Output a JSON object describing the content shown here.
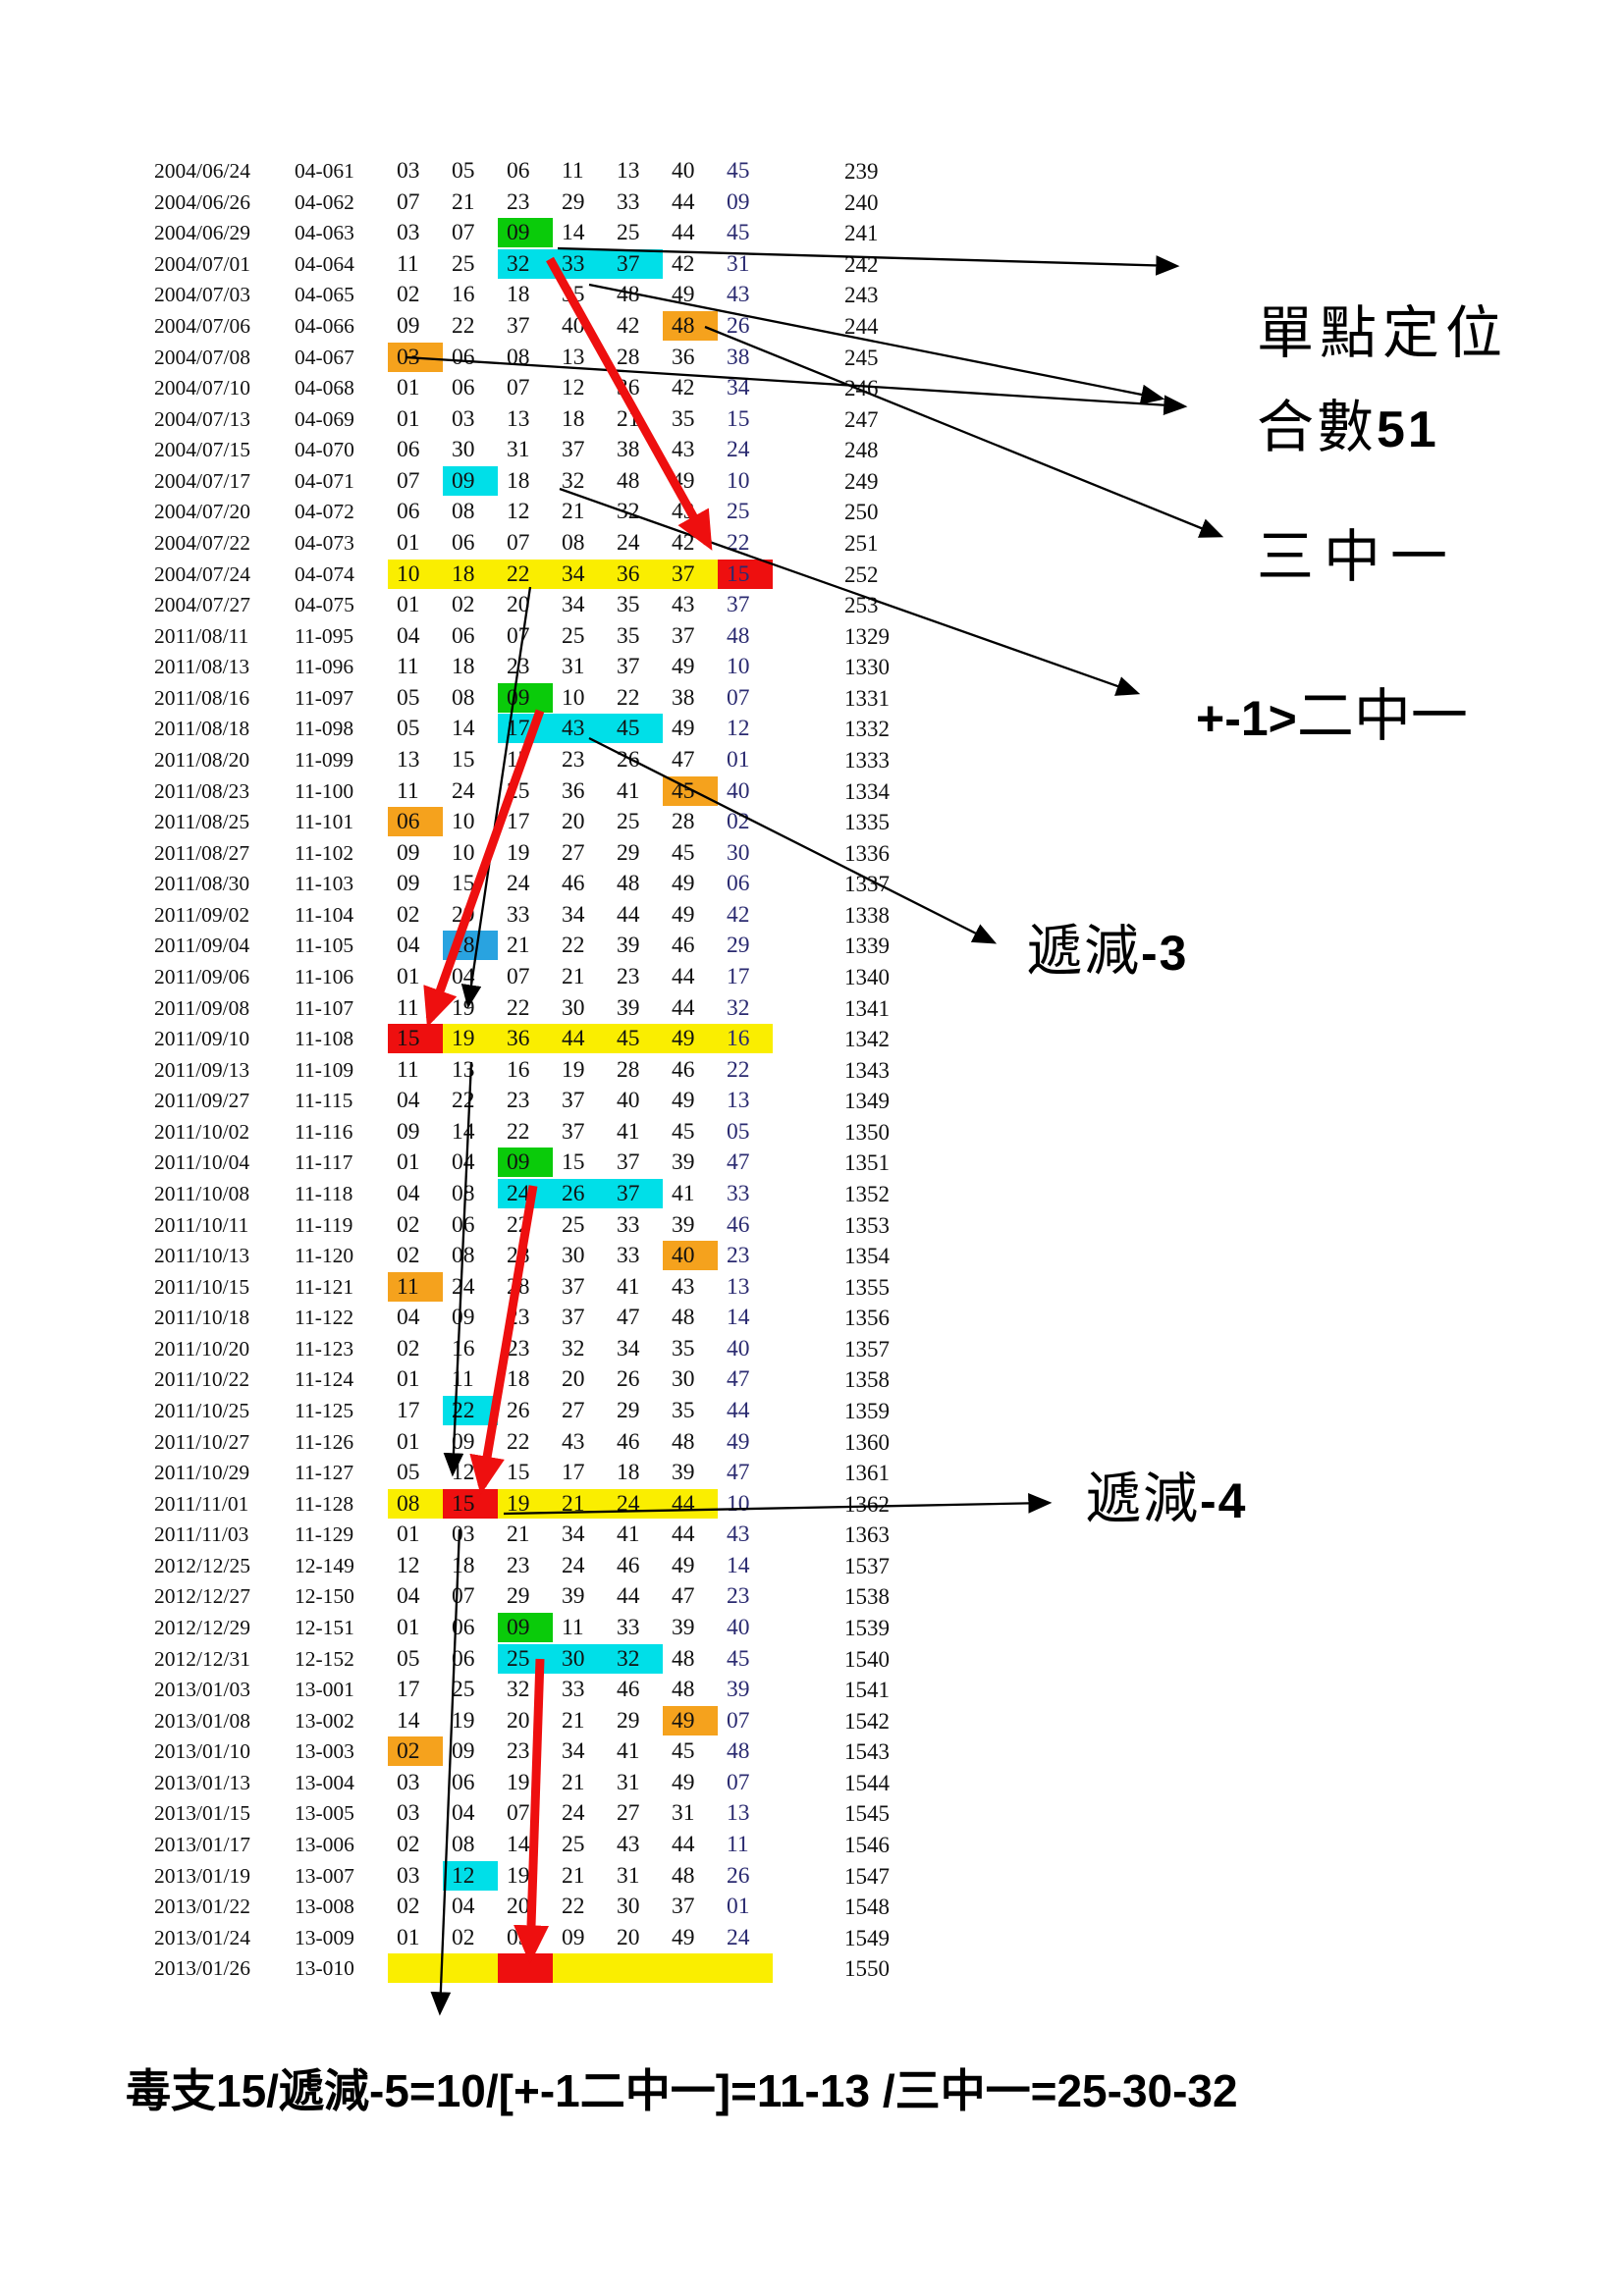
{
  "palette": {
    "green": "#0acb0a",
    "cyan": "#00dfe8",
    "blue": "#29a3e0",
    "orange": "#f5a21d",
    "red": "#ee0f0f",
    "yellow": "#faee00",
    "navy": "#2a2a70"
  },
  "annotations": {
    "single_point": {
      "text": "單點定位"
    },
    "sum51": {
      "cjk": "合數",
      "num": "51"
    },
    "three_hit_one": {
      "text": "三中一"
    },
    "plus_minus": {
      "latin": "+-1>",
      "cjk": "二中一"
    },
    "decrease3": {
      "cjk": "遞減",
      "num": "-3"
    },
    "decrease4": {
      "cjk": "遞減",
      "num": "-4"
    }
  },
  "footer": {
    "text": "毒支15/遞減-5=10/[+-1二中一]=11-13 /三中一=25-30-32"
  },
  "table": {
    "rows": [
      {
        "d": "2004/06/24",
        "id": "04-061",
        "n": [
          "03",
          "05",
          "06",
          "11",
          "13",
          "40",
          "45"
        ],
        "s": "239"
      },
      {
        "d": "2004/06/26",
        "id": "04-062",
        "n": [
          "07",
          "21",
          "23",
          "29",
          "33",
          "44",
          "09"
        ],
        "s": "240"
      },
      {
        "d": "2004/06/29",
        "id": "04-063",
        "n": [
          "03",
          "07",
          "09",
          "14",
          "25",
          "44",
          "45"
        ],
        "s": "241",
        "hl": {
          "3": "green"
        }
      },
      {
        "d": "2004/07/01",
        "id": "04-064",
        "n": [
          "11",
          "25",
          "32",
          "33",
          "37",
          "42",
          "31"
        ],
        "s": "242",
        "hl": {
          "3": "cyan",
          "4": "cyan",
          "5": "cyan"
        }
      },
      {
        "d": "2004/07/03",
        "id": "04-065",
        "n": [
          "02",
          "16",
          "18",
          "35",
          "48",
          "49",
          "43"
        ],
        "s": "243"
      },
      {
        "d": "2004/07/06",
        "id": "04-066",
        "n": [
          "09",
          "22",
          "37",
          "40",
          "42",
          "48",
          "26"
        ],
        "s": "244",
        "hl": {
          "6": "orange"
        }
      },
      {
        "d": "2004/07/08",
        "id": "04-067",
        "n": [
          "03",
          "06",
          "08",
          "13",
          "28",
          "36",
          "38"
        ],
        "s": "245",
        "hl": {
          "1": "orange"
        }
      },
      {
        "d": "2004/07/10",
        "id": "04-068",
        "n": [
          "01",
          "06",
          "07",
          "12",
          "36",
          "42",
          "34"
        ],
        "s": "246"
      },
      {
        "d": "2004/07/13",
        "id": "04-069",
        "n": [
          "01",
          "03",
          "13",
          "18",
          "21",
          "35",
          "15"
        ],
        "s": "247"
      },
      {
        "d": "2004/07/15",
        "id": "04-070",
        "n": [
          "06",
          "30",
          "31",
          "37",
          "38",
          "43",
          "24"
        ],
        "s": "248"
      },
      {
        "d": "2004/07/17",
        "id": "04-071",
        "n": [
          "07",
          "09",
          "18",
          "32",
          "48",
          "49",
          "10"
        ],
        "s": "249",
        "hl": {
          "2": "cyan"
        }
      },
      {
        "d": "2004/07/20",
        "id": "04-072",
        "n": [
          "06",
          "08",
          "12",
          "21",
          "32",
          "43",
          "25"
        ],
        "s": "250"
      },
      {
        "d": "2004/07/22",
        "id": "04-073",
        "n": [
          "01",
          "06",
          "07",
          "08",
          "24",
          "42",
          "22"
        ],
        "s": "251"
      },
      {
        "d": "2004/07/24",
        "id": "04-074",
        "n": [
          "10",
          "18",
          "22",
          "34",
          "36",
          "37",
          "15"
        ],
        "s": "252",
        "band": [
          1,
          6
        ],
        "hl": {
          "7": "red"
        }
      },
      {
        "d": "2004/07/27",
        "id": "04-075",
        "n": [
          "01",
          "02",
          "20",
          "34",
          "35",
          "43",
          "37"
        ],
        "s": "253"
      },
      {
        "d": "2011/08/11",
        "id": "11-095",
        "n": [
          "04",
          "06",
          "07",
          "25",
          "35",
          "37",
          "48"
        ],
        "s": "1329"
      },
      {
        "d": "2011/08/13",
        "id": "11-096",
        "n": [
          "11",
          "18",
          "23",
          "31",
          "37",
          "49",
          "10"
        ],
        "s": "1330"
      },
      {
        "d": "2011/08/16",
        "id": "11-097",
        "n": [
          "05",
          "08",
          "09",
          "10",
          "22",
          "38",
          "07"
        ],
        "s": "1331",
        "hl": {
          "3": "green"
        }
      },
      {
        "d": "2011/08/18",
        "id": "11-098",
        "n": [
          "05",
          "14",
          "17",
          "43",
          "45",
          "49",
          "12"
        ],
        "s": "1332",
        "hl": {
          "3": "cyan",
          "4": "cyan",
          "5": "cyan"
        }
      },
      {
        "d": "2011/08/20",
        "id": "11-099",
        "n": [
          "13",
          "15",
          "17",
          "23",
          "26",
          "47",
          "01"
        ],
        "s": "1333"
      },
      {
        "d": "2011/08/23",
        "id": "11-100",
        "n": [
          "11",
          "24",
          "25",
          "36",
          "41",
          "45",
          "40"
        ],
        "s": "1334",
        "hl": {
          "6": "orange"
        }
      },
      {
        "d": "2011/08/25",
        "id": "11-101",
        "n": [
          "06",
          "10",
          "17",
          "20",
          "25",
          "28",
          "02"
        ],
        "s": "1335",
        "hl": {
          "1": "orange"
        }
      },
      {
        "d": "2011/08/27",
        "id": "11-102",
        "n": [
          "09",
          "10",
          "19",
          "27",
          "29",
          "45",
          "30"
        ],
        "s": "1336"
      },
      {
        "d": "2011/08/30",
        "id": "11-103",
        "n": [
          "09",
          "15",
          "24",
          "46",
          "48",
          "49",
          "06"
        ],
        "s": "1337"
      },
      {
        "d": "2011/09/02",
        "id": "11-104",
        "n": [
          "02",
          "29",
          "33",
          "34",
          "44",
          "49",
          "42"
        ],
        "s": "1338"
      },
      {
        "d": "2011/09/04",
        "id": "11-105",
        "n": [
          "04",
          "18",
          "21",
          "22",
          "39",
          "46",
          "29"
        ],
        "s": "1339",
        "hl": {
          "2": "blue"
        }
      },
      {
        "d": "2011/09/06",
        "id": "11-106",
        "n": [
          "01",
          "04",
          "07",
          "21",
          "23",
          "44",
          "17"
        ],
        "s": "1340"
      },
      {
        "d": "2011/09/08",
        "id": "11-107",
        "n": [
          "11",
          "19",
          "22",
          "30",
          "39",
          "44",
          "32"
        ],
        "s": "1341"
      },
      {
        "d": "2011/09/10",
        "id": "11-108",
        "n": [
          "15",
          "19",
          "36",
          "44",
          "45",
          "49",
          "16"
        ],
        "s": "1342",
        "band": [
          2,
          7
        ],
        "hl": {
          "1": "red"
        }
      },
      {
        "d": "2011/09/13",
        "id": "11-109",
        "n": [
          "11",
          "13",
          "16",
          "19",
          "28",
          "46",
          "22"
        ],
        "s": "1343"
      },
      {
        "d": "2011/09/27",
        "id": "11-115",
        "n": [
          "04",
          "22",
          "23",
          "37",
          "40",
          "49",
          "13"
        ],
        "s": "1349"
      },
      {
        "d": "2011/10/02",
        "id": "11-116",
        "n": [
          "09",
          "14",
          "22",
          "37",
          "41",
          "45",
          "05"
        ],
        "s": "1350"
      },
      {
        "d": "2011/10/04",
        "id": "11-117",
        "n": [
          "01",
          "04",
          "09",
          "15",
          "37",
          "39",
          "47"
        ],
        "s": "1351",
        "hl": {
          "3": "green"
        }
      },
      {
        "d": "2011/10/08",
        "id": "11-118",
        "n": [
          "04",
          "08",
          "24",
          "26",
          "37",
          "41",
          "33"
        ],
        "s": "1352",
        "hl": {
          "3": "cyan",
          "4": "cyan",
          "5": "cyan"
        }
      },
      {
        "d": "2011/10/11",
        "id": "11-119",
        "n": [
          "02",
          "06",
          "22",
          "25",
          "33",
          "39",
          "46"
        ],
        "s": "1353"
      },
      {
        "d": "2011/10/13",
        "id": "11-120",
        "n": [
          "02",
          "08",
          "28",
          "30",
          "33",
          "40",
          "23"
        ],
        "s": "1354",
        "hl": {
          "6": "orange"
        }
      },
      {
        "d": "2011/10/15",
        "id": "11-121",
        "n": [
          "11",
          "24",
          "28",
          "37",
          "41",
          "43",
          "13"
        ],
        "s": "1355",
        "hl": {
          "1": "orange"
        }
      },
      {
        "d": "2011/10/18",
        "id": "11-122",
        "n": [
          "04",
          "09",
          "23",
          "37",
          "47",
          "48",
          "14"
        ],
        "s": "1356"
      },
      {
        "d": "2011/10/20",
        "id": "11-123",
        "n": [
          "02",
          "16",
          "23",
          "32",
          "34",
          "35",
          "40"
        ],
        "s": "1357"
      },
      {
        "d": "2011/10/22",
        "id": "11-124",
        "n": [
          "01",
          "11",
          "18",
          "20",
          "26",
          "30",
          "47"
        ],
        "s": "1358"
      },
      {
        "d": "2011/10/25",
        "id": "11-125",
        "n": [
          "17",
          "22",
          "26",
          "27",
          "29",
          "35",
          "44"
        ],
        "s": "1359",
        "hl": {
          "2": "cyan"
        }
      },
      {
        "d": "2011/10/27",
        "id": "11-126",
        "n": [
          "01",
          "09",
          "22",
          "43",
          "46",
          "48",
          "49"
        ],
        "s": "1360"
      },
      {
        "d": "2011/10/29",
        "id": "11-127",
        "n": [
          "05",
          "12",
          "15",
          "17",
          "18",
          "39",
          "47"
        ],
        "s": "1361"
      },
      {
        "d": "2011/11/01",
        "id": "11-128",
        "n": [
          "08",
          "15",
          "19",
          "21",
          "24",
          "44",
          "10"
        ],
        "s": "1362",
        "band": [
          1,
          6
        ],
        "hl": {
          "2": "red"
        }
      },
      {
        "d": "2011/11/03",
        "id": "11-129",
        "n": [
          "01",
          "03",
          "21",
          "34",
          "41",
          "44",
          "43"
        ],
        "s": "1363"
      },
      {
        "d": "2012/12/25",
        "id": "12-149",
        "n": [
          "12",
          "18",
          "23",
          "24",
          "46",
          "49",
          "14"
        ],
        "s": "1537"
      },
      {
        "d": "2012/12/27",
        "id": "12-150",
        "n": [
          "04",
          "07",
          "29",
          "39",
          "44",
          "47",
          "23"
        ],
        "s": "1538"
      },
      {
        "d": "2012/12/29",
        "id": "12-151",
        "n": [
          "01",
          "06",
          "09",
          "11",
          "33",
          "39",
          "40"
        ],
        "s": "1539",
        "hl": {
          "3": "green"
        }
      },
      {
        "d": "2012/12/31",
        "id": "12-152",
        "n": [
          "05",
          "06",
          "25",
          "30",
          "32",
          "48",
          "45"
        ],
        "s": "1540",
        "hl": {
          "3": "cyan",
          "4": "cyan",
          "5": "cyan"
        }
      },
      {
        "d": "2013/01/03",
        "id": "13-001",
        "n": [
          "17",
          "25",
          "32",
          "33",
          "46",
          "48",
          "39"
        ],
        "s": "1541"
      },
      {
        "d": "2013/01/08",
        "id": "13-002",
        "n": [
          "14",
          "19",
          "20",
          "21",
          "29",
          "49",
          "07"
        ],
        "s": "1542",
        "hl": {
          "6": "orange"
        }
      },
      {
        "d": "2013/01/10",
        "id": "13-003",
        "n": [
          "02",
          "09",
          "23",
          "34",
          "41",
          "45",
          "48"
        ],
        "s": "1543",
        "hl": {
          "1": "orange"
        }
      },
      {
        "d": "2013/01/13",
        "id": "13-004",
        "n": [
          "03",
          "06",
          "19",
          "21",
          "31",
          "49",
          "07"
        ],
        "s": "1544"
      },
      {
        "d": "2013/01/15",
        "id": "13-005",
        "n": [
          "03",
          "04",
          "07",
          "24",
          "27",
          "31",
          "13"
        ],
        "s": "1545"
      },
      {
        "d": "2013/01/17",
        "id": "13-006",
        "n": [
          "02",
          "08",
          "14",
          "25",
          "43",
          "44",
          "11"
        ],
        "s": "1546"
      },
      {
        "d": "2013/01/19",
        "id": "13-007",
        "n": [
          "03",
          "12",
          "19",
          "21",
          "31",
          "48",
          "26"
        ],
        "s": "1547",
        "hl": {
          "2": "cyan"
        }
      },
      {
        "d": "2013/01/22",
        "id": "13-008",
        "n": [
          "02",
          "04",
          "20",
          "22",
          "30",
          "37",
          "01"
        ],
        "s": "1548"
      },
      {
        "d": "2013/01/24",
        "id": "13-009",
        "n": [
          "01",
          "02",
          "03",
          "09",
          "20",
          "49",
          "24"
        ],
        "s": "1549"
      },
      {
        "d": "2013/01/26",
        "id": "13-010",
        "n": [],
        "s": "1550",
        "band": [
          1,
          7
        ],
        "hl": {
          "3": "red"
        }
      }
    ]
  }
}
